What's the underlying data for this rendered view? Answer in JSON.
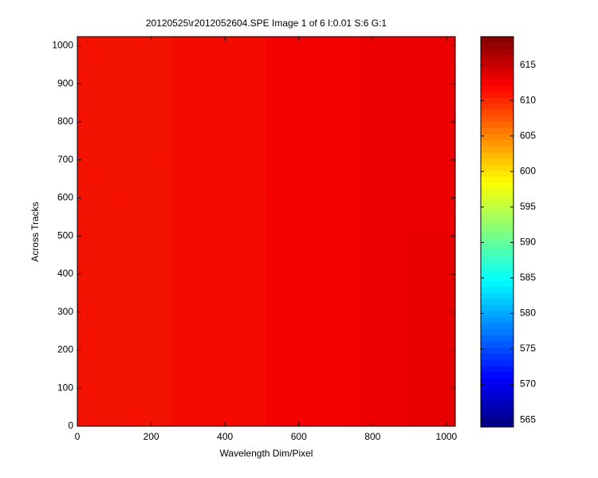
{
  "chart_data": {
    "type": "heatmap",
    "title": "20120525\\r2012052604.SPE  Image 1 of 6  I:0.01  S:6  G:1",
    "x_label": "Wavelength Dim/Pixel",
    "y_label": "Across Tracks",
    "xlim": [
      0,
      1024
    ],
    "xticks": [
      0,
      200,
      400,
      600,
      800,
      1000
    ],
    "ylim": [
      0,
      1024
    ],
    "yticks": [
      0,
      100,
      200,
      300,
      400,
      500,
      600,
      700,
      800,
      900,
      1000
    ],
    "colormap": "jet",
    "clim": [
      564,
      619
    ],
    "colorbar_ticks": [
      565,
      570,
      575,
      580,
      585,
      590,
      595,
      600,
      605,
      610,
      615
    ],
    "values": [
      [
        611,
        611,
        611.5,
        611.5,
        612,
        612,
        612.5,
        613
      ],
      [
        611,
        611,
        611.5,
        611.5,
        612,
        612,
        612.5,
        613
      ],
      [
        611,
        611,
        611.5,
        611.5,
        612,
        612,
        612.5,
        612.5
      ],
      [
        611,
        611,
        611.5,
        611.5,
        612,
        612,
        612.5,
        612.5
      ]
    ]
  }
}
